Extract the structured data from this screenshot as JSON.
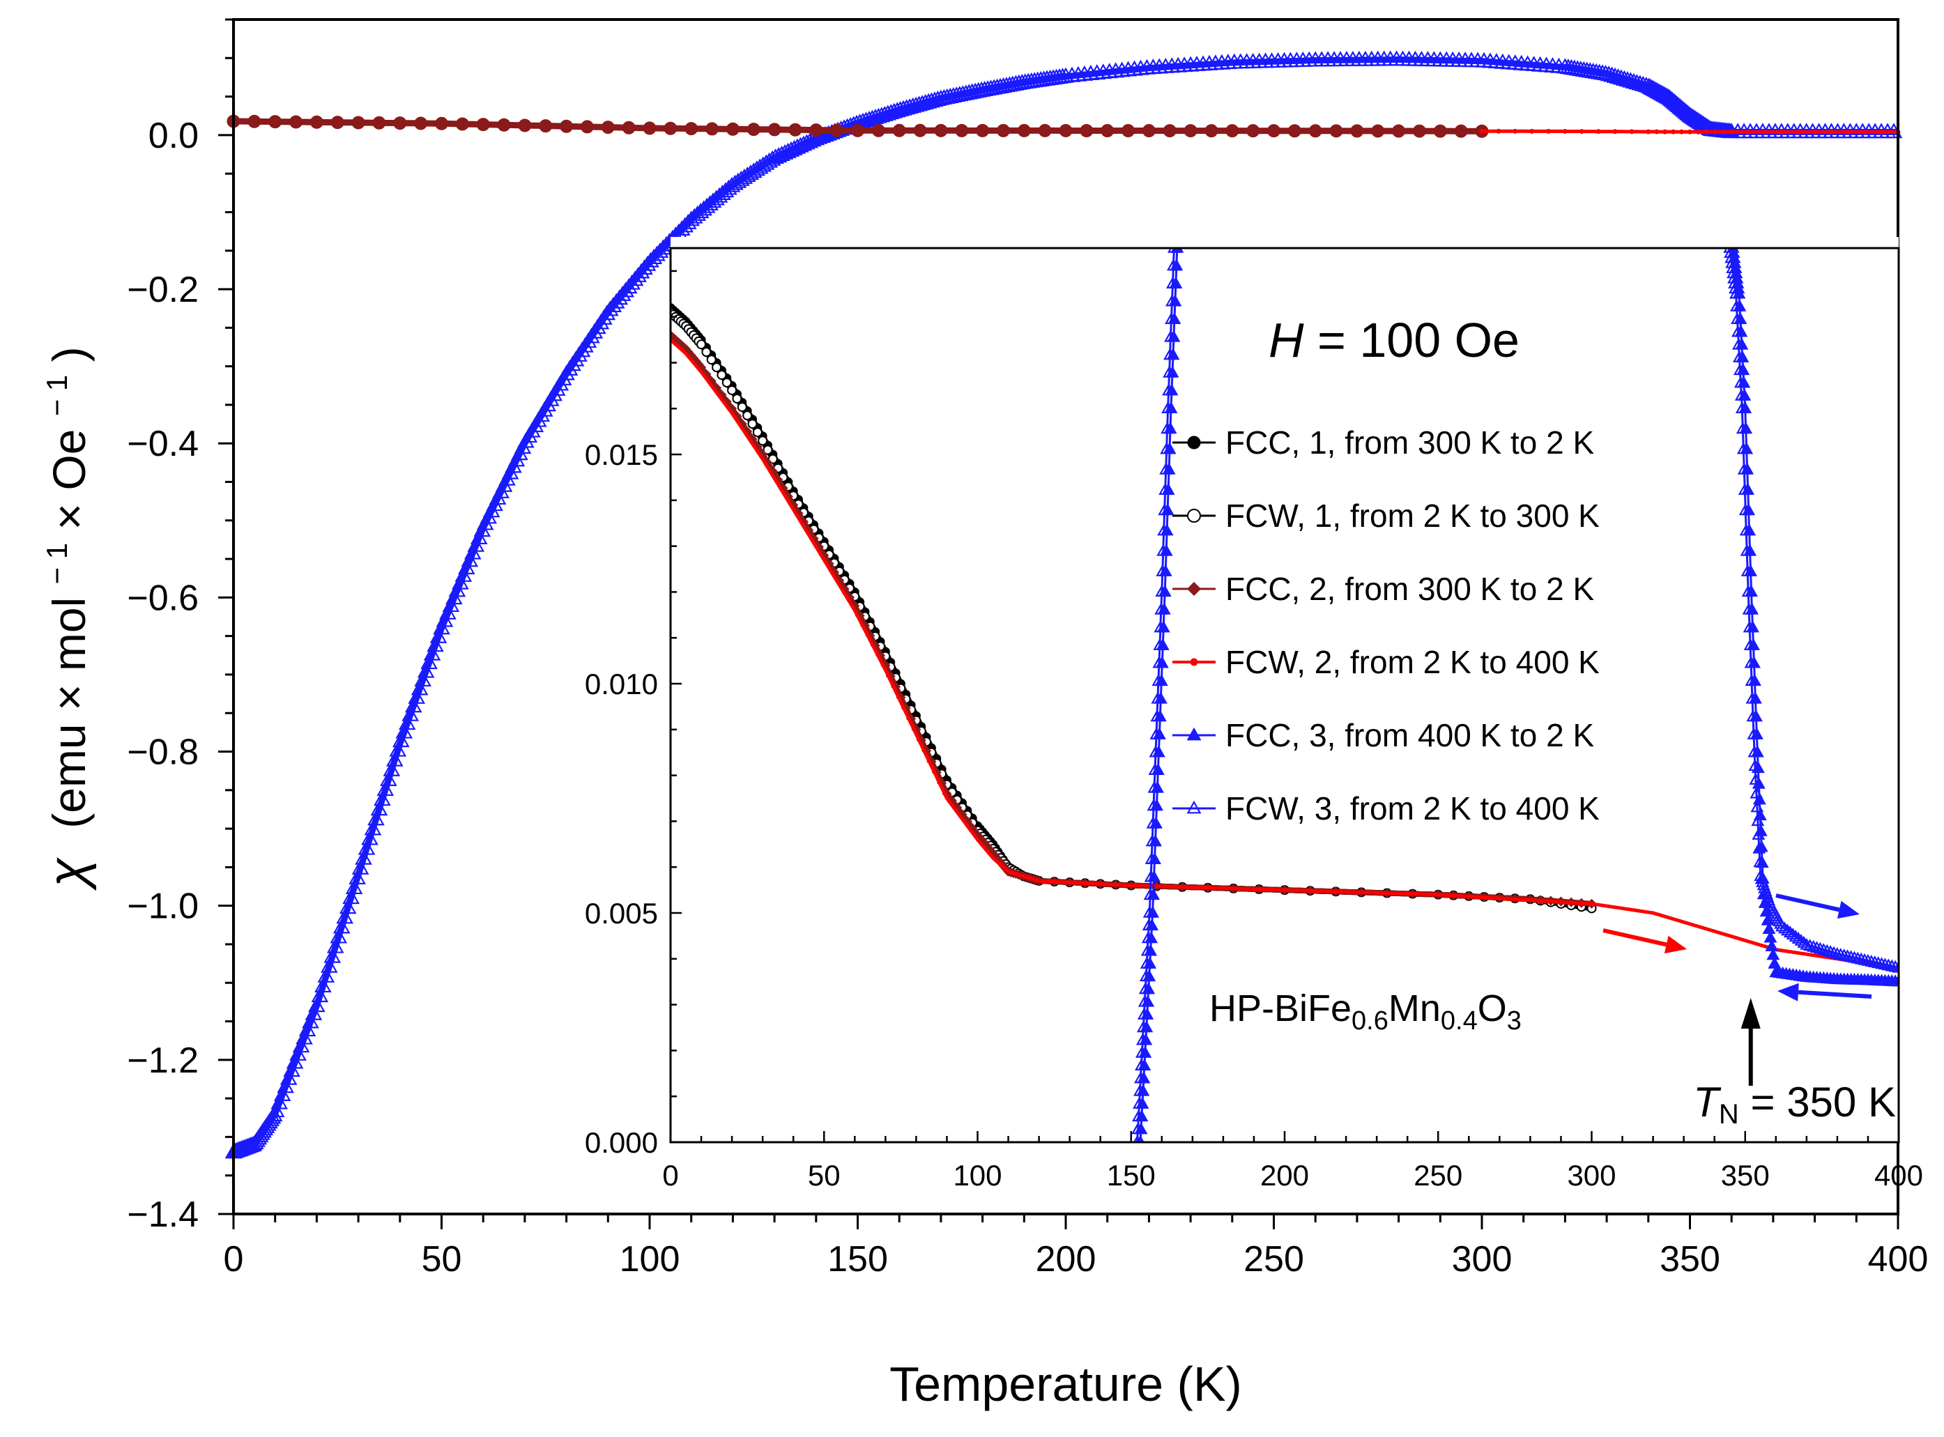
{
  "chart_data": [
    {
      "type": "scatter",
      "panel": "main",
      "xlabel": "Temperature (K)",
      "ylabel": {
        "main": "χ",
        "units_1": "(emu",
        "times_1": "×",
        "units_2": " mol",
        "sup_1": "− 1",
        "times_2": "×",
        "units_3": " Oe",
        "sup_2": "− 1",
        "close": ")"
      },
      "xlim": [
        0,
        400
      ],
      "ylim": [
        -1.4,
        0.15
      ],
      "xticks": [
        0,
        50,
        100,
        150,
        200,
        250,
        300,
        350,
        400
      ],
      "xtick_labels": [
        "0",
        "50",
        "100",
        "150",
        "200",
        "250",
        "300",
        "350",
        "400"
      ],
      "yticks": [
        0.0,
        -0.2,
        -0.4,
        -0.6,
        -0.8,
        -1.0,
        -1.2,
        -1.4
      ],
      "ytick_labels": [
        "0.0",
        "−0.2",
        "−0.4",
        "−0.6",
        "−0.8",
        "−1.0",
        "−1.2",
        "−1.4"
      ],
      "series": [
        {
          "name": "FCC/FCW, 3 (blue)",
          "color": "#1a1aff",
          "marker": "open-triangle",
          "x": [
            0,
            5,
            10,
            20,
            30,
            40,
            50,
            60,
            70,
            80,
            90,
            100,
            110,
            120,
            130,
            140,
            150,
            160,
            170,
            180,
            190,
            200,
            220,
            240,
            260,
            280,
            300,
            320,
            330,
            340,
            345,
            350,
            355,
            360,
            380,
            400
          ],
          "y": [
            -1.32,
            -1.31,
            -1.27,
            -1.13,
            -0.96,
            -0.79,
            -0.64,
            -0.51,
            -0.4,
            -0.31,
            -0.23,
            -0.165,
            -0.11,
            -0.065,
            -0.03,
            -0.005,
            0.015,
            0.032,
            0.047,
            0.058,
            0.068,
            0.076,
            0.087,
            0.094,
            0.097,
            0.098,
            0.096,
            0.088,
            0.079,
            0.063,
            0.048,
            0.025,
            0.007,
            0.004,
            0.004,
            0.004
          ]
        },
        {
          "name": "FCC, 1 / FCW, 1 / FCC, 2 (black, dark red)",
          "color": "#8b1a1a",
          "marker": "filled-circle",
          "x": [
            0,
            50,
            100,
            150,
            200,
            250,
            300
          ],
          "y": [
            0.018,
            0.015,
            0.009,
            0.006,
            0.0058,
            0.0056,
            0.0051
          ]
        },
        {
          "name": "FCW, 2 (red)",
          "color": "#ff0000",
          "marker": "small-dot",
          "x": [
            300,
            320,
            340,
            350,
            360,
            380,
            400
          ],
          "y": [
            0.0051,
            0.0049,
            0.0044,
            0.0042,
            0.0041,
            0.004,
            0.004
          ]
        }
      ]
    },
    {
      "type": "line",
      "panel": "inset",
      "title": "H = 100 Oe",
      "xlim": [
        0,
        400
      ],
      "ylim": [
        0.0,
        0.0195
      ],
      "xticks": [
        0,
        50,
        100,
        150,
        200,
        250,
        300,
        350,
        400
      ],
      "xtick_labels": [
        "0",
        "50",
        "100",
        "150",
        "200",
        "250",
        "300",
        "350",
        "400"
      ],
      "yticks": [
        0.0,
        0.005,
        0.01,
        0.015
      ],
      "ytick_labels": [
        "0.000",
        "0.005",
        "0.010",
        "0.015"
      ],
      "series": [
        {
          "name": "FCC, 1, from 300 K to 2 K",
          "color": "#000000",
          "marker": "filled-circle",
          "x": [
            0,
            5,
            10,
            20,
            30,
            40,
            50,
            60,
            70,
            80,
            90,
            100,
            105,
            110,
            115,
            120,
            150,
            200,
            250,
            280,
            300
          ],
          "y": [
            0.0182,
            0.0179,
            0.0175,
            0.0165,
            0.0154,
            0.0142,
            0.0131,
            0.012,
            0.0107,
            0.0093,
            0.0079,
            0.0069,
            0.0065,
            0.006,
            0.0058,
            0.0057,
            0.0056,
            0.0055,
            0.0054,
            0.0053,
            0.0051
          ]
        },
        {
          "name": "FCW, 1, from 2 K to 300 K",
          "color": "#000000",
          "marker": "open-circle",
          "x": [
            0,
            5,
            10,
            20,
            30,
            40,
            50,
            60,
            70,
            80,
            90,
            100,
            105,
            110,
            115,
            120,
            150,
            200,
            250,
            280,
            300
          ],
          "y": [
            0.0181,
            0.0178,
            0.0174,
            0.0164,
            0.0153,
            0.0141,
            0.013,
            0.0119,
            0.0106,
            0.0092,
            0.0078,
            0.0068,
            0.0064,
            0.006,
            0.0058,
            0.0057,
            0.0056,
            0.0055,
            0.0054,
            0.0053,
            0.0051
          ]
        },
        {
          "name": "FCC, 2, from 300 K to 2 K",
          "color": "#8b1a1a",
          "marker": "filled-diamond",
          "x": [
            0,
            5,
            10,
            20,
            30,
            40,
            50,
            60,
            70,
            80,
            90,
            100,
            105,
            110,
            115,
            120,
            150,
            200,
            250,
            280,
            300
          ],
          "y": [
            0.0176,
            0.0173,
            0.0169,
            0.016,
            0.015,
            0.0139,
            0.0128,
            0.0117,
            0.0104,
            0.009,
            0.0076,
            0.0067,
            0.0063,
            0.0059,
            0.0058,
            0.0057,
            0.0056,
            0.0055,
            0.0054,
            0.0053,
            0.0052
          ]
        },
        {
          "name": "FCW, 2, from 2 K to 400 K",
          "color": "#ff0000",
          "marker": "small-dot",
          "x": [
            0,
            5,
            10,
            20,
            30,
            40,
            50,
            60,
            70,
            80,
            90,
            100,
            105,
            110,
            115,
            120,
            150,
            200,
            250,
            300,
            320,
            330,
            340,
            350,
            360,
            380,
            400
          ],
          "y": [
            0.0175,
            0.0172,
            0.0168,
            0.0159,
            0.0149,
            0.0138,
            0.0127,
            0.0116,
            0.0103,
            0.0089,
            0.0075,
            0.0066,
            0.0062,
            0.0059,
            0.0058,
            0.0057,
            0.0056,
            0.0055,
            0.0054,
            0.0052,
            0.005,
            0.0048,
            0.0046,
            0.0044,
            0.0042,
            0.004,
            0.0038
          ]
        },
        {
          "name": "FCC, 3, from 400 K to 2 K",
          "color": "#1a1aff",
          "marker": "filled-triangle",
          "x": [
            153,
            155,
            157,
            159,
            161,
            163,
            165,
            200,
            250,
            300,
            346,
            348,
            350,
            352,
            354,
            356,
            360,
            370,
            380,
            390,
            400
          ],
          "y": [
            0.0,
            0.0025,
            0.005,
            0.0085,
            0.012,
            0.016,
            0.0195,
            0.0195,
            0.0195,
            0.0195,
            0.0195,
            0.0185,
            0.016,
            0.012,
            0.0085,
            0.0054,
            0.0037,
            0.0036,
            0.00355,
            0.00353,
            0.0035
          ]
        },
        {
          "name": "FCW, 3, from 2 K to 400 K",
          "color": "#1a1aff",
          "marker": "open-triangle",
          "x": [
            152,
            154,
            156,
            158,
            160,
            162,
            164,
            200,
            250,
            300,
            345,
            347,
            349,
            351,
            353,
            355,
            358,
            362,
            370,
            380,
            390,
            400
          ],
          "y": [
            0.0,
            0.0025,
            0.005,
            0.0085,
            0.012,
            0.016,
            0.0195,
            0.0195,
            0.0195,
            0.0195,
            0.0195,
            0.0185,
            0.016,
            0.012,
            0.0085,
            0.0058,
            0.0052,
            0.0047,
            0.0043,
            0.0041,
            0.00395,
            0.0038
          ]
        }
      ],
      "annotations": {
        "field_symbol": "H",
        "field_rest": " = 100 Oe",
        "compound": {
          "p1": "HP-BiFe",
          "s1": "0.6",
          "p2": "Mn",
          "s2": "0.4",
          "p3": "O",
          "s3": "3"
        },
        "tn_symbol": "T",
        "tn_sub": "N",
        "tn_rest": " = 350 K",
        "tn_value": 350
      }
    }
  ]
}
